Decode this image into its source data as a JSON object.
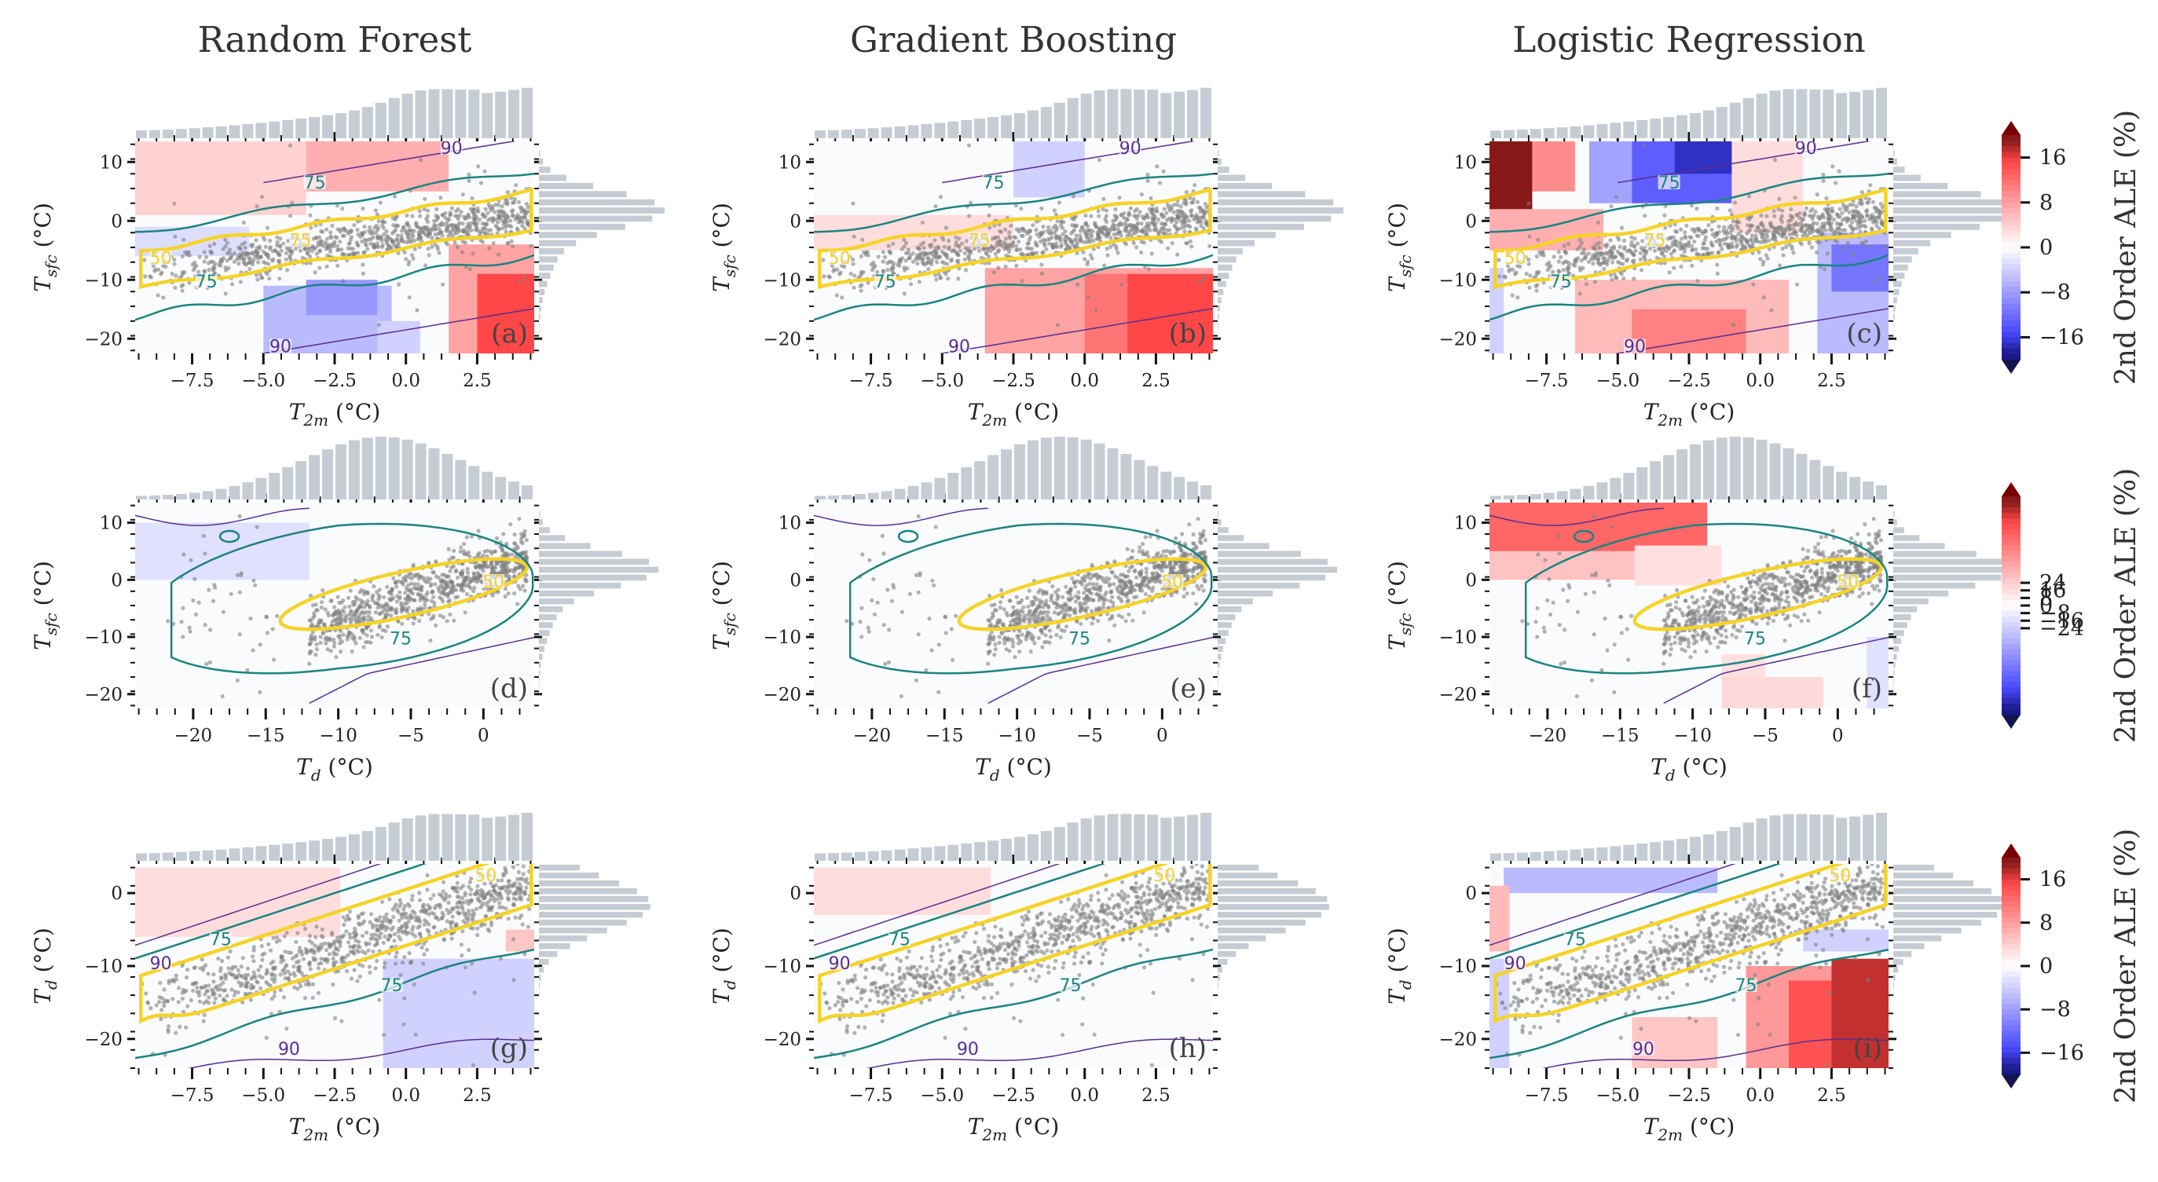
{
  "titles": [
    "Random Forest",
    "Gradient Boosting",
    "Logistic Regression"
  ],
  "colors": {
    "scatter": "#808080",
    "hist": "#c5ccd3",
    "contour50": "#f5d328",
    "contour75": "#1a8480",
    "contour90": "#5a2d91",
    "positive": "#e8302e",
    "negative": "#3a3ae6"
  },
  "chart_data": [
    {
      "type": "heatmap",
      "rows": [
        {
          "xlabel_base": "T",
          "xlabel_sub": "2m",
          "xlabel_unit": " (°C)",
          "ylabel_base": "T",
          "ylabel_sub": "sfc",
          "ylabel_unit": " (°C)",
          "xlim": [
            -9.5,
            4.5
          ],
          "ylim": [
            -22.5,
            13.5
          ],
          "xticks": [
            "-7.5",
            "-5.0",
            "-2.5",
            "0.0",
            "2.5"
          ],
          "yticks": [
            "10",
            "0",
            "-10",
            "-20"
          ],
          "panel_labels": [
            "(a)",
            "(b)",
            "(c)"
          ],
          "contour_labels": [
            "50",
            "75",
            "90"
          ],
          "ale_cells": [
            [
              {
                "x": [
                  -9.5,
                  -3.5
                ],
                "y": [
                  1,
                  13.5
                ],
                "v": 4
              },
              {
                "x": [
                  -3.5,
                  1.5
                ],
                "y": [
                  5,
                  13.5
                ],
                "v": 7
              },
              {
                "x": [
                  -9.5,
                  -5.5
                ],
                "y": [
                  -6,
                  -1
                ],
                "v": -3
              },
              {
                "x": [
                  1.5,
                  4.5
                ],
                "y": [
                  -22.5,
                  -4
                ],
                "v": 8
              },
              {
                "x": [
                  2.5,
                  4.5
                ],
                "y": [
                  -22.5,
                  -9
                ],
                "v": 16
              },
              {
                "x": [
                  -5,
                  -0.5
                ],
                "y": [
                  -22.5,
                  -11
                ],
                "v": -6
              },
              {
                "x": [
                  -3.5,
                  -1
                ],
                "y": [
                  -16,
                  -10
                ],
                "v": -9
              },
              {
                "x": [
                  -1,
                  0.5
                ],
                "y": [
                  -22.5,
                  -17
                ],
                "v": -4
              }
            ],
            [
              {
                "x": [
                  -2.5,
                  0
                ],
                "y": [
                  4,
                  13.5
                ],
                "v": -4
              },
              {
                "x": [
                  -9.5,
                  -2.5
                ],
                "y": [
                  -5,
                  1
                ],
                "v": 3
              },
              {
                "x": [
                  -3.5,
                  4.5
                ],
                "y": [
                  -22.5,
                  -8
                ],
                "v": 8
              },
              {
                "x": [
                  0,
                  4.5
                ],
                "y": [
                  -22.5,
                  -9
                ],
                "v": 12
              },
              {
                "x": [
                  1.5,
                  4.5
                ],
                "y": [
                  -22.5,
                  -9
                ],
                "v": 16
              }
            ],
            [
              {
                "x": [
                  -9.5,
                  -8
                ],
                "y": [
                  -2,
                  13.5
                ],
                "v": 22
              },
              {
                "x": [
                  -8,
                  -6.5
                ],
                "y": [
                  5,
                  13.5
                ],
                "v": 10
              },
              {
                "x": [
                  -9.5,
                  -5.5
                ],
                "y": [
                  -5,
                  2
                ],
                "v": 7
              },
              {
                "x": [
                  -6,
                  -4
                ],
                "y": [
                  3,
                  13.5
                ],
                "v": -8
              },
              {
                "x": [
                  -4.5,
                  -1
                ],
                "y": [
                  3,
                  13.5
                ],
                "v": -14
              },
              {
                "x": [
                  -3,
                  0
                ],
                "y": [
                  8,
                  13.5
                ],
                "v": -18
              },
              {
                "x": [
                  -1,
                  1.5
                ],
                "y": [
                  -2,
                  13.5
                ],
                "v": 3
              },
              {
                "x": [
                  -6.5,
                  1
                ],
                "y": [
                  -22.5,
                  -10
                ],
                "v": 6
              },
              {
                "x": [
                  -4.5,
                  -0.5
                ],
                "y": [
                  -22.5,
                  -15
                ],
                "v": 11
              },
              {
                "x": [
                  2,
                  4.5
                ],
                "y": [
                  -22.5,
                  -2
                ],
                "v": -6
              },
              {
                "x": [
                  2.5,
                  4.5
                ],
                "y": [
                  -12,
                  -4
                ],
                "v": -12
              },
              {
                "x": [
                  -9.5,
                  -9
                ],
                "y": [
                  -22.5,
                  -8
                ],
                "v": -4
              }
            ]
          ]
        },
        {
          "xlabel_base": "T",
          "xlabel_sub": "d",
          "xlabel_unit": " (°C)",
          "ylabel_base": "T",
          "ylabel_sub": "sfc",
          "ylabel_unit": " (°C)",
          "xlim": [
            -24,
            3.5
          ],
          "ylim": [
            -22.5,
            13.5
          ],
          "xticks": [
            "-20",
            "-15",
            "-10",
            "-5",
            "0"
          ],
          "yticks": [
            "10",
            "0",
            "-10",
            "-20"
          ],
          "panel_labels": [
            "(d)",
            "(e)",
            "(f)"
          ],
          "contour_labels": [
            "50",
            "75",
            "90"
          ],
          "ale_cells": [
            [
              {
                "x": [
                  -24,
                  -12
                ],
                "y": [
                  0,
                  10
                ],
                "v": -4
              }
            ],
            [],
            [
              {
                "x": [
                  -24,
                  -9
                ],
                "y": [
                  5,
                  13.5
                ],
                "v": 20
              },
              {
                "x": [
                  -24,
                  -14
                ],
                "y": [
                  0,
                  5
                ],
                "v": 8
              },
              {
                "x": [
                  -14,
                  -8
                ],
                "y": [
                  -1,
                  6
                ],
                "v": 4
              },
              {
                "x": [
                  -8,
                  -1
                ],
                "y": [
                  -22.5,
                  -17
                ],
                "v": 5
              },
              {
                "x": [
                  -8,
                  -5
                ],
                "y": [
                  -17,
                  -13
                ],
                "v": 4
              },
              {
                "x": [
                  2,
                  3.5
                ],
                "y": [
                  -22.5,
                  -10
                ],
                "v": -4
              }
            ]
          ]
        },
        {
          "xlabel_base": "T",
          "xlabel_sub": "2m",
          "xlabel_unit": " (°C)",
          "ylabel_base": "T",
          "ylabel_sub": "d",
          "ylabel_unit": " (°C)",
          "xlim": [
            -9.5,
            4.5
          ],
          "ylim": [
            -24,
            4
          ],
          "xticks": [
            "-7.5",
            "-5.0",
            "-2.5",
            "0.0",
            "2.5"
          ],
          "yticks": [
            "0",
            "-10",
            "-20"
          ],
          "panel_labels": [
            "(g)",
            "(h)",
            "(i)"
          ],
          "contour_labels": [
            "50",
            "75",
            "90"
          ],
          "ale_cells": [
            [
              {
                "x": [
                  -9.5,
                  -2.3
                ],
                "y": [
                  -6,
                  3.5
                ],
                "v": 3
              },
              {
                "x": [
                  -0.8,
                  4.5
                ],
                "y": [
                  -24,
                  -9
                ],
                "v": -4
              },
              {
                "x": [
                  3.5,
                  4.5
                ],
                "y": [
                  -8,
                  -5
                ],
                "v": 5
              }
            ],
            [
              {
                "x": [
                  -9.5,
                  -3.3
                ],
                "y": [
                  -3,
                  3.5
                ],
                "v": 3
              }
            ],
            [
              {
                "x": [
                  -9,
                  -1.5
                ],
                "y": [
                  0,
                  3.5
                ],
                "v": -6
              },
              {
                "x": [
                  -9.5,
                  -8.8
                ],
                "y": [
                  -24,
                  -9
                ],
                "v": -4
              },
              {
                "x": [
                  -9.5,
                  -8.8
                ],
                "y": [
                  -8,
                  1
                ],
                "v": 6
              },
              {
                "x": [
                  1.5,
                  4.5
                ],
                "y": [
                  -8,
                  -5
                ],
                "v": -4
              },
              {
                "x": [
                  -4.5,
                  -1.5
                ],
                "y": [
                  -24,
                  -17
                ],
                "v": 5
              },
              {
                "x": [
                  -0.5,
                  4.5
                ],
                "y": [
                  -24,
                  -10
                ],
                "v": 9
              },
              {
                "x": [
                  1,
                  4.5
                ],
                "y": [
                  -24,
                  -12
                ],
                "v": 15
              },
              {
                "x": [
                  2.5,
                  4.5
                ],
                "y": [
                  -24,
                  -9
                ],
                "v": 18
              }
            ]
          ]
        }
      ]
    }
  ],
  "colorbars": [
    {
      "label": "2nd Order ALE (%)",
      "ticks": [
        "16",
        "8",
        "0",
        "−8",
        "−16"
      ],
      "values": [
        16,
        8,
        0,
        -8,
        -16
      ],
      "range": [
        -20,
        20
      ]
    },
    {
      "label": "2nd Order ALE (%)",
      "ticks": [
        "24",
        "16",
        "8",
        "0",
        "−8",
        "−16",
        "−24"
      ],
      "values": [
        24,
        16,
        8,
        0,
        -8,
        -16,
        -24
      ],
      "range": [
        -30,
        30
      ]
    },
    {
      "label": "2nd Order ALE (%)",
      "ticks": [
        "16",
        "8",
        "0",
        "−8",
        "−16"
      ],
      "values": [
        16,
        8,
        0,
        -8,
        -16
      ],
      "range": [
        -20,
        20
      ]
    }
  ]
}
